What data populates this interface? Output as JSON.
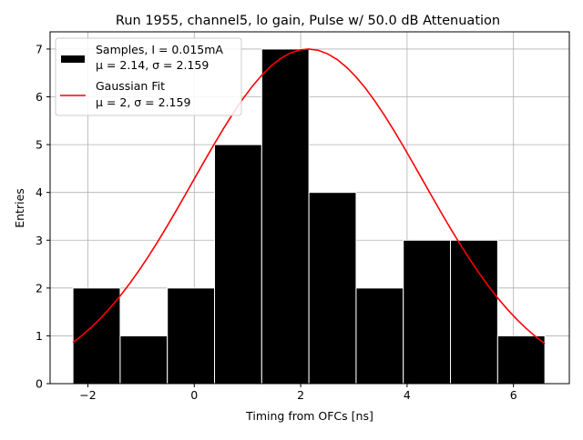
{
  "chart_data": {
    "type": "bar",
    "title": "Run 1955, channel5, lo gain, Pulse w/ 50.0 dB Attenuation",
    "xlabel": "Timing from OFCs [ns]",
    "ylabel": "Entries",
    "xlim": [
      -2.71,
      7.05
    ],
    "ylim": [
      0,
      7.36
    ],
    "grid": true,
    "x_ticks": [
      -2,
      0,
      2,
      4,
      6
    ],
    "x_tick_labels": [
      "−2",
      "0",
      "2",
      "4",
      "6"
    ],
    "y_ticks": [
      0,
      1,
      2,
      3,
      4,
      5,
      6,
      7
    ],
    "y_tick_labels": [
      "0",
      "1",
      "2",
      "3",
      "4",
      "5",
      "6",
      "7"
    ],
    "histogram": {
      "bin_edges": [
        -2.28,
        -1.393,
        -0.506,
        0.381,
        1.268,
        2.155,
        3.042,
        3.929,
        4.816,
        5.703,
        6.59
      ],
      "counts": [
        2,
        1,
        2,
        5,
        7,
        4,
        2,
        3,
        3,
        1
      ],
      "color": "#000000"
    },
    "fit": {
      "amplitude": 7,
      "mean": 2.14,
      "sigma": 2.159,
      "x_range": [
        -2.28,
        6.59
      ],
      "color": "#ff0000"
    },
    "legend": {
      "placement": "top-left",
      "entries": [
        {
          "line1": "Samples, I = 0.015mA",
          "line2": "μ = 2.14, σ = 2.159"
        },
        {
          "line1": "Gaussian Fit",
          "line2": "μ = 2, σ = 2.159"
        }
      ]
    }
  }
}
